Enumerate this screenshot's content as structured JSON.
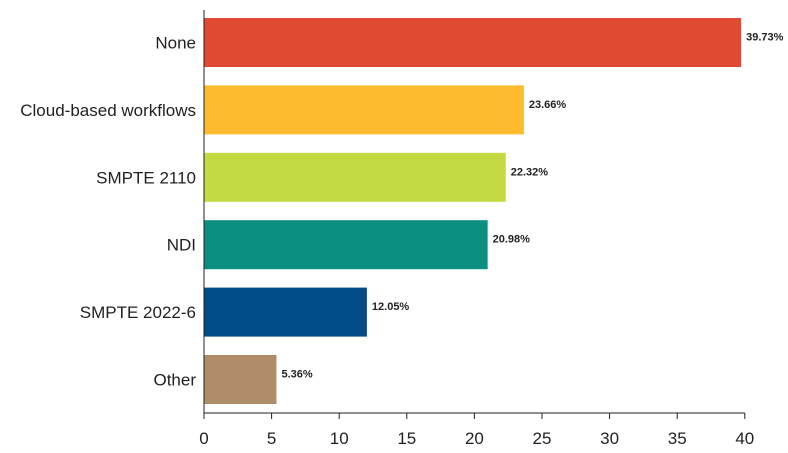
{
  "chart_data": {
    "type": "bar",
    "orientation": "horizontal",
    "title": "",
    "xlabel": "",
    "ylabel": "",
    "categories": [
      "None",
      "Cloud-based workflows",
      "SMPTE 2110",
      "NDI",
      "SMPTE 2022-6",
      "Other"
    ],
    "values": [
      39.73,
      23.66,
      22.32,
      20.98,
      12.05,
      5.36
    ],
    "value_labels": [
      "39.73%",
      "23.66%",
      "22.32%",
      "20.98%",
      "12.05%",
      "5.36%"
    ],
    "colors": [
      "#e04a32",
      "#fdbb30",
      "#c5d942",
      "#0b8f80",
      "#024d87",
      "#b08d69"
    ],
    "xlim": [
      0,
      40
    ],
    "x_ticks": [
      0,
      5,
      10,
      15,
      20,
      25,
      30,
      35,
      40
    ],
    "x_tick_labels": [
      "0",
      "5",
      "10",
      "15",
      "20",
      "25",
      "30",
      "35",
      "40"
    ],
    "grid": false,
    "legend": "none"
  }
}
